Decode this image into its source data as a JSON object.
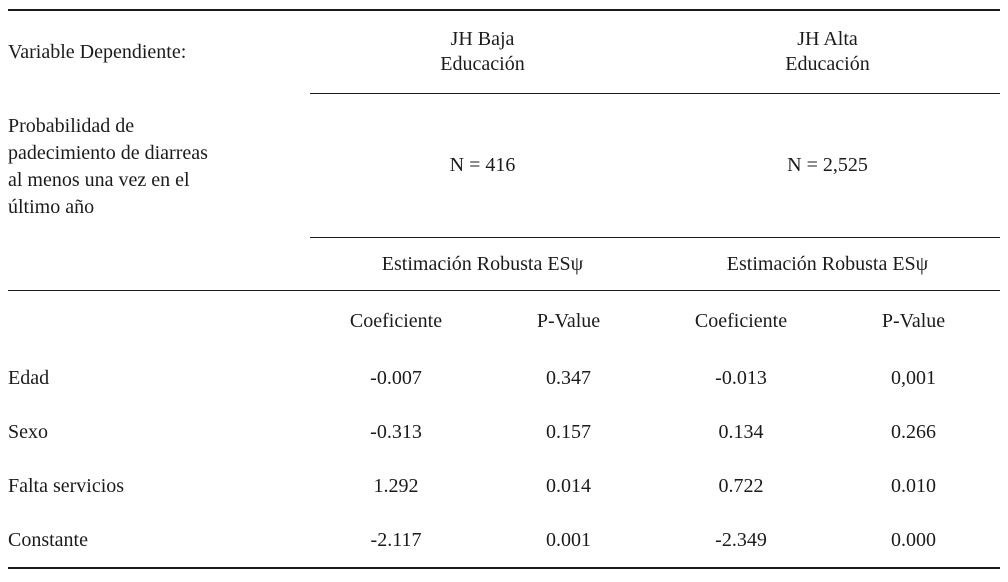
{
  "table": {
    "header": {
      "dependent_variable_label": "Variable Dependiente:",
      "groups": [
        {
          "title_line1": "JH Baja",
          "title_line2": "Educación",
          "n": "N = 416",
          "estimation": "Estimación Robusta ESψ"
        },
        {
          "title_line1": "JH Alta",
          "title_line2": "Educación",
          "n": "N = 2,525",
          "estimation": "Estimación Robusta ESψ"
        }
      ],
      "note_lines": [
        "Probabilidad de",
        "padecimiento de diarreas",
        "al menos una vez en el",
        "último año"
      ],
      "subheaders": [
        "Coeficiente",
        "P-Value",
        "Coeficiente",
        "P-Value"
      ]
    },
    "rows": [
      {
        "label": "Edad",
        "values": [
          "-0.007",
          "0.347",
          "-0.013",
          "0,001"
        ]
      },
      {
        "label": "Sexo",
        "values": [
          "-0.313",
          "0.157",
          "0.134",
          "0.266"
        ]
      },
      {
        "label": "Falta servicios",
        "values": [
          "1.292",
          "0.014",
          "0.722",
          "0.010"
        ]
      },
      {
        "label": "Constante",
        "values": [
          "-2.117",
          "0.001",
          "-2.349",
          "0.000"
        ]
      }
    ]
  },
  "colors": {
    "text": "#1b1b1b",
    "rule": "#1b1b1b",
    "background": "#ffffff"
  }
}
